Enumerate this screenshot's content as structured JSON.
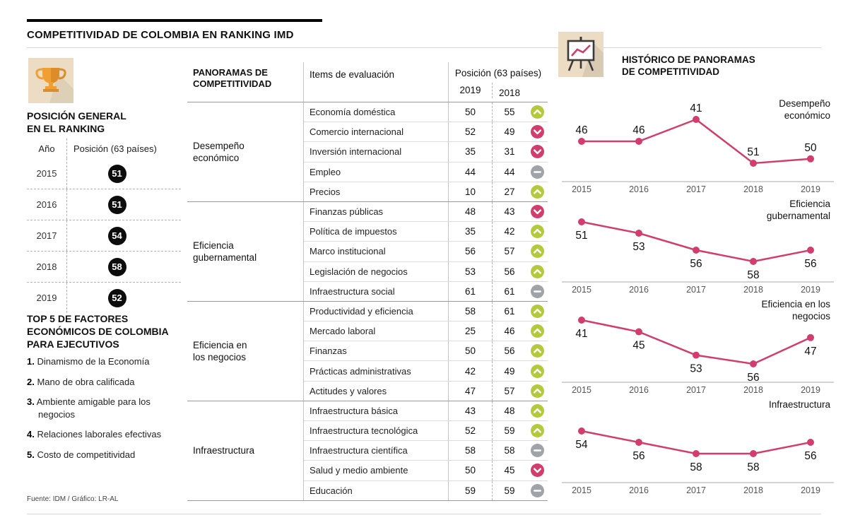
{
  "title": "COMPETITIVIDAD DE COLOMBIA EN RANKING IMD",
  "left": {
    "ranking_heading": "POSICIÓN GENERAL\nEN EL RANKING",
    "table": {
      "col_year": "Año",
      "col_position": "Posición (63 países)",
      "rows": [
        {
          "year": "2015",
          "position": "51"
        },
        {
          "year": "2016",
          "position": "51"
        },
        {
          "year": "2017",
          "position": "54"
        },
        {
          "year": "2018",
          "position": "58"
        },
        {
          "year": "2019",
          "position": "52"
        }
      ]
    },
    "top5_heading": "TOP 5 DE FACTORES\nECONÓMICOS DE COLOMBIA\nPARA EJECUTIVOS",
    "top5_items": [
      {
        "num": "1.",
        "text": "Dinamismo de la Economía"
      },
      {
        "num": "2.",
        "text": "Mano de obra calificada"
      },
      {
        "num": "3.",
        "text": "Ambiente amigable para los negocios"
      },
      {
        "num": "4.",
        "text": "Relaciones laborales efectivas"
      },
      {
        "num": "5.",
        "text": "Costo de competitividad"
      }
    ],
    "source": "Fuente: IDM / Gráfico: LR-AL"
  },
  "panoramas": {
    "col1_header": "PANORAMAS DE\nCOMPETITIVIDAD",
    "col2_header": "Items de evaluación",
    "col3_header": "Posición (63 países)",
    "year_2019": "2019",
    "year_2018": "2018",
    "groups": [
      {
        "category": "Desempeño\neconómico",
        "items": [
          {
            "label": "Economía doméstica",
            "y2019": "50",
            "y2018": "55",
            "trend": "up"
          },
          {
            "label": "Comercio internacional",
            "y2019": "52",
            "y2018": "49",
            "trend": "down"
          },
          {
            "label": "Inversión internacional",
            "y2019": "35",
            "y2018": "31",
            "trend": "down"
          },
          {
            "label": "Empleo",
            "y2019": "44",
            "y2018": "44",
            "trend": "flat"
          },
          {
            "label": "Precios",
            "y2019": "10",
            "y2018": "27",
            "trend": "up"
          }
        ]
      },
      {
        "category": "Eficiencia\ngubernamental",
        "items": [
          {
            "label": "Finanzas públicas",
            "y2019": "48",
            "y2018": "43",
            "trend": "down"
          },
          {
            "label": "Política de impuestos",
            "y2019": "35",
            "y2018": "42",
            "trend": "up"
          },
          {
            "label": "Marco institucional",
            "y2019": "56",
            "y2018": "57",
            "trend": "up"
          },
          {
            "label": "Legislación de negocios",
            "y2019": "53",
            "y2018": "56",
            "trend": "up"
          },
          {
            "label": "Infraestructura social",
            "y2019": "61",
            "y2018": "61",
            "trend": "flat"
          }
        ]
      },
      {
        "category": "Eficiencia en\nlos negocios",
        "items": [
          {
            "label": "Productividad y eficiencia",
            "y2019": "58",
            "y2018": "61",
            "trend": "up"
          },
          {
            "label": "Mercado laboral",
            "y2019": "25",
            "y2018": "46",
            "trend": "up"
          },
          {
            "label": "Finanzas",
            "y2019": "50",
            "y2018": "56",
            "trend": "up"
          },
          {
            "label": "Prácticas administrativas",
            "y2019": "42",
            "y2018": "49",
            "trend": "up"
          },
          {
            "label": "Actitudes y valores",
            "y2019": "47",
            "y2018": "57",
            "trend": "up"
          }
        ]
      },
      {
        "category": "Infraestructura",
        "items": [
          {
            "label": "Infraestructura básica",
            "y2019": "43",
            "y2018": "48",
            "trend": "up"
          },
          {
            "label": "Infraestructura tecnológica",
            "y2019": "52",
            "y2018": "59",
            "trend": "up"
          },
          {
            "label": "Infraestructura científica",
            "y2019": "58",
            "y2018": "58",
            "trend": "flat"
          },
          {
            "label": "Salud y medio ambiente",
            "y2019": "50",
            "y2018": "45",
            "trend": "down"
          },
          {
            "label": "Educación",
            "y2019": "59",
            "y2018": "59",
            "trend": "flat"
          }
        ]
      }
    ]
  },
  "right": {
    "heading": "HISTÓRICO DE PANORAMAS\nDE COMPETITIVIDAD"
  },
  "chart_data": [
    {
      "type": "line",
      "title": "Desempeño\neconómico",
      "x": [
        "2015",
        "2016",
        "2017",
        "2018",
        "2019"
      ],
      "values": [
        46,
        46,
        41,
        51,
        50
      ],
      "label_position": "above"
    },
    {
      "type": "line",
      "title": "Eficiencia\ngubernamental",
      "x": [
        "2015",
        "2016",
        "2017",
        "2018",
        "2019"
      ],
      "values": [
        51,
        53,
        56,
        58,
        56
      ],
      "label_position": "below"
    },
    {
      "type": "line",
      "title": "Eficiencia en los\nnegocios",
      "x": [
        "2015",
        "2016",
        "2017",
        "2018",
        "2019"
      ],
      "values": [
        41,
        45,
        53,
        56,
        47
      ],
      "label_position": "below"
    },
    {
      "type": "line",
      "title": "Infraestructura",
      "x": [
        "2015",
        "2016",
        "2017",
        "2018",
        "2019"
      ],
      "values": [
        54,
        56,
        58,
        58,
        56
      ],
      "label_position": "below"
    }
  ],
  "colors": {
    "accent_line": "#d23d6d",
    "trend_up": "#b5c93c",
    "trend_down": "#d23d6d",
    "trend_flat": "#a0a4a8",
    "badge_black": "#0c0c0c",
    "tile_bg": "#ecdcc3",
    "trophy_orange": "#f09f33"
  }
}
